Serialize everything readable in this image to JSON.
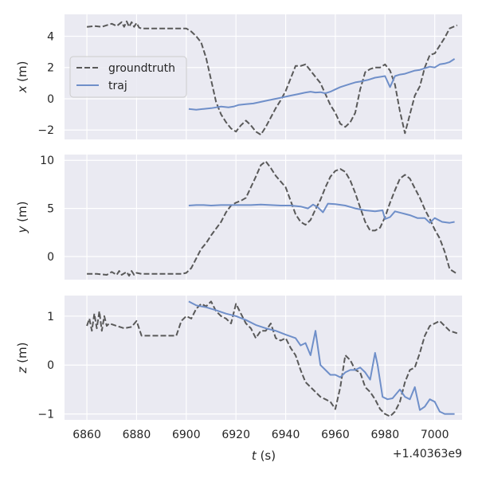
{
  "chart_data": [
    {
      "type": "line",
      "ylabel_var": "x",
      "ylabel_unit": " (m)",
      "ylim": [
        -2.6,
        5.4
      ],
      "yticks": [
        -2,
        0,
        2,
        4
      ],
      "legend": "upper-left",
      "series": [
        {
          "name": "groundtruth",
          "color": "#595959",
          "dashed": true,
          "x": [
            6860,
            6863,
            6866,
            6868,
            6870,
            6872,
            6874,
            6875,
            6876,
            6877,
            6878,
            6879,
            6880,
            6881,
            6882,
            6884,
            6888,
            6892,
            6896,
            6900,
            6902,
            6904,
            6906,
            6908,
            6910,
            6912,
            6914,
            6916,
            6918,
            6920,
            6922,
            6924,
            6926,
            6928,
            6930,
            6932,
            6934,
            6936,
            6938,
            6940,
            6942,
            6944,
            6946,
            6948,
            6950,
            6952,
            6954,
            6956,
            6958,
            6960,
            6962,
            6964,
            6966,
            6968,
            6970,
            6972,
            6974,
            6976,
            6978,
            6980,
            6982,
            6984,
            6986,
            6988,
            6990,
            6992,
            6994,
            6996,
            6998,
            7000,
            7002,
            7004,
            7006,
            7009
          ],
          "y": [
            4.6,
            4.65,
            4.6,
            4.7,
            4.8,
            4.65,
            4.9,
            4.6,
            4.95,
            4.6,
            4.9,
            4.6,
            4.85,
            4.55,
            4.5,
            4.5,
            4.5,
            4.5,
            4.5,
            4.5,
            4.3,
            4.0,
            3.6,
            2.6,
            1.2,
            -0.2,
            -1.0,
            -1.5,
            -1.9,
            -2.1,
            -1.7,
            -1.4,
            -1.7,
            -2.1,
            -2.3,
            -1.8,
            -1.2,
            -0.6,
            -0.1,
            0.5,
            1.3,
            2.1,
            2.1,
            2.2,
            1.8,
            1.4,
            1.0,
            0.3,
            -0.4,
            -0.9,
            -1.6,
            -1.8,
            -1.5,
            -0.9,
            0.6,
            1.7,
            1.9,
            2.0,
            2.0,
            2.2,
            1.8,
            0.9,
            -0.8,
            -2.2,
            -1.0,
            0.2,
            0.8,
            2.0,
            2.8,
            2.9,
            3.4,
            3.9,
            4.5,
            4.7
          ]
        },
        {
          "name": "traj",
          "color": "#6f8fc9",
          "dashed": false,
          "x": [
            6901,
            6904,
            6907,
            6910,
            6912,
            6914,
            6917,
            6919,
            6921,
            6924,
            6927,
            6930,
            6933,
            6936,
            6939,
            6942,
            6945,
            6948,
            6950,
            6952,
            6954,
            6956,
            6958,
            6960,
            6962,
            6964,
            6966,
            6968,
            6970,
            6973,
            6976,
            6978,
            6980,
            6982,
            6984,
            6986,
            6988,
            6990,
            6992,
            6994,
            6996,
            6998,
            7000,
            7002,
            7004,
            7006,
            7008
          ],
          "y": [
            -0.65,
            -0.7,
            -0.65,
            -0.6,
            -0.55,
            -0.5,
            -0.55,
            -0.5,
            -0.4,
            -0.35,
            -0.3,
            -0.2,
            -0.1,
            0.0,
            0.1,
            0.2,
            0.3,
            0.4,
            0.45,
            0.4,
            0.42,
            0.35,
            0.45,
            0.6,
            0.75,
            0.85,
            0.95,
            1.05,
            1.1,
            1.2,
            1.35,
            1.4,
            1.45,
            0.75,
            1.45,
            1.55,
            1.6,
            1.7,
            1.8,
            1.85,
            1.95,
            2.05,
            2.0,
            2.2,
            2.25,
            2.35,
            2.55
          ]
        }
      ]
    },
    {
      "type": "line",
      "ylabel_var": "y",
      "ylabel_unit": " (m)",
      "ylim": [
        -2.4,
        10.6
      ],
      "yticks": [
        0,
        5,
        10
      ],
      "series": [
        {
          "name": "groundtruth",
          "color": "#595959",
          "dashed": true,
          "x": [
            6860,
            6864,
            6868,
            6870,
            6872,
            6873,
            6874,
            6876,
            6877,
            6878,
            6879,
            6880,
            6882,
            6886,
            6890,
            6894,
            6898,
            6900,
            6902,
            6904,
            6906,
            6908,
            6910,
            6912,
            6914,
            6916,
            6918,
            6920,
            6922,
            6924,
            6926,
            6928,
            6930,
            6932,
            6934,
            6936,
            6938,
            6940,
            6942,
            6944,
            6946,
            6948,
            6950,
            6952,
            6954,
            6956,
            6958,
            6960,
            6962,
            6964,
            6966,
            6968,
            6970,
            6972,
            6974,
            6976,
            6978,
            6980,
            6982,
            6984,
            6986,
            6988,
            6990,
            6992,
            6994,
            6996,
            6998,
            7000,
            7002,
            7004,
            7006,
            7009
          ],
          "y": [
            -1.8,
            -1.8,
            -1.9,
            -1.6,
            -1.9,
            -1.5,
            -1.9,
            -1.6,
            -2.0,
            -1.5,
            -1.9,
            -1.7,
            -1.8,
            -1.8,
            -1.8,
            -1.8,
            -1.8,
            -1.7,
            -1.2,
            -0.2,
            0.8,
            1.4,
            2.2,
            2.9,
            3.6,
            4.6,
            5.3,
            5.6,
            5.8,
            6.1,
            7.2,
            8.3,
            9.5,
            9.9,
            9.2,
            8.4,
            7.8,
            7.2,
            5.8,
            4.4,
            3.6,
            3.3,
            3.8,
            4.9,
            5.9,
            7.2,
            8.3,
            8.9,
            9.1,
            8.8,
            7.9,
            6.6,
            5.1,
            3.6,
            2.7,
            2.7,
            3.0,
            4.1,
            5.6,
            6.9,
            8.1,
            8.5,
            8.1,
            7.1,
            6.1,
            4.9,
            3.9,
            2.8,
            1.9,
            0.5,
            -1.3,
            -1.8
          ]
        },
        {
          "name": "traj",
          "color": "#6f8fc9",
          "dashed": false,
          "x": [
            6901,
            6904,
            6907,
            6910,
            6914,
            6918,
            6922,
            6926,
            6930,
            6934,
            6938,
            6942,
            6946,
            6949,
            6951,
            6953,
            6955,
            6957,
            6960,
            6964,
            6968,
            6972,
            6976,
            6979,
            6980,
            6982,
            6984,
            6987,
            6990,
            6993,
            6996,
            6998,
            7000,
            7003,
            7006,
            7008
          ],
          "y": [
            5.3,
            5.35,
            5.35,
            5.3,
            5.35,
            5.35,
            5.35,
            5.35,
            5.4,
            5.35,
            5.3,
            5.3,
            5.2,
            5.0,
            5.4,
            5.1,
            4.6,
            5.5,
            5.45,
            5.3,
            5.0,
            4.8,
            4.7,
            4.8,
            3.9,
            4.1,
            4.7,
            4.5,
            4.3,
            4.0,
            4.0,
            3.5,
            4.0,
            3.6,
            3.5,
            3.6
          ]
        }
      ]
    },
    {
      "type": "line",
      "ylabel_var": "z",
      "ylabel_unit": " (m)",
      "ylim": [
        -1.12,
        1.42
      ],
      "yticks": [
        -1,
        0,
        1
      ],
      "series": [
        {
          "name": "groundtruth",
          "color": "#595959",
          "dashed": true,
          "x": [
            6860,
            6861,
            6862,
            6863,
            6864,
            6865,
            6866,
            6867,
            6868,
            6869,
            6872,
            6875,
            6878,
            6880,
            6882,
            6884,
            6888,
            6892,
            6896,
            6898,
            6900,
            6902,
            6904,
            6906,
            6908,
            6910,
            6912,
            6914,
            6916,
            6918,
            6920,
            6922,
            6924,
            6926,
            6928,
            6930,
            6932,
            6934,
            6936,
            6938,
            6940,
            6942,
            6944,
            6946,
            6948,
            6950,
            6952,
            6954,
            6956,
            6958,
            6960,
            6962,
            6964,
            6966,
            6968,
            6970,
            6972,
            6974,
            6976,
            6978,
            6980,
            6982,
            6984,
            6986,
            6988,
            6990,
            6992,
            6994,
            6996,
            6998,
            7000,
            7002,
            7004,
            7006,
            7009
          ],
          "y": [
            0.8,
            0.95,
            0.7,
            1.05,
            0.75,
            1.1,
            0.7,
            1.0,
            0.8,
            0.85,
            0.8,
            0.75,
            0.78,
            0.9,
            0.6,
            0.6,
            0.6,
            0.6,
            0.6,
            0.9,
            1.0,
            0.95,
            1.15,
            1.25,
            1.2,
            1.3,
            1.1,
            1.0,
            0.95,
            0.85,
            1.25,
            1.05,
            0.85,
            0.75,
            0.55,
            0.7,
            0.7,
            0.85,
            0.55,
            0.5,
            0.55,
            0.35,
            0.2,
            -0.1,
            -0.35,
            -0.45,
            -0.55,
            -0.65,
            -0.7,
            -0.75,
            -0.9,
            -0.45,
            0.2,
            0.1,
            -0.1,
            -0.15,
            -0.45,
            -0.55,
            -0.7,
            -0.9,
            -1.0,
            -1.05,
            -0.95,
            -0.75,
            -0.35,
            -0.1,
            -0.05,
            0.25,
            0.6,
            0.8,
            0.85,
            0.9,
            0.8,
            0.7,
            0.65
          ]
        },
        {
          "name": "traj",
          "color": "#6f8fc9",
          "dashed": false,
          "x": [
            6901,
            6904,
            6908,
            6912,
            6916,
            6920,
            6924,
            6928,
            6932,
            6936,
            6940,
            6944,
            6946,
            6948,
            6950,
            6952,
            6954,
            6956,
            6958,
            6960,
            6962,
            6964,
            6966,
            6968,
            6970,
            6972,
            6974,
            6976,
            6977,
            6979,
            6981,
            6983,
            6986,
            6988,
            6990,
            6992,
            6994,
            6996,
            6998,
            7000,
            7002,
            7004,
            7006,
            7008
          ],
          "y": [
            1.3,
            1.22,
            1.18,
            1.12,
            1.05,
            1.0,
            0.92,
            0.82,
            0.75,
            0.7,
            0.62,
            0.55,
            0.4,
            0.45,
            0.2,
            0.7,
            0.0,
            -0.1,
            -0.2,
            -0.2,
            -0.25,
            -0.15,
            -0.1,
            -0.1,
            -0.05,
            -0.15,
            -0.3,
            0.25,
            0.0,
            -0.65,
            -0.7,
            -0.68,
            -0.5,
            -0.65,
            -0.7,
            -0.45,
            -0.92,
            -0.85,
            -0.7,
            -0.75,
            -0.95,
            -1.0,
            -1.0,
            -1.0
          ]
        }
      ]
    }
  ],
  "x_axis": {
    "xlim": [
      6851,
      7011
    ],
    "ticks": [
      6860,
      6880,
      6900,
      6920,
      6940,
      6960,
      6980,
      7000
    ],
    "tick_labels": [
      "6860",
      "6880",
      "6900",
      "6920",
      "6940",
      "6960",
      "6980",
      "7000"
    ],
    "label_var": "t",
    "label_unit": " (s)",
    "offset_text": "+1.40363e9"
  },
  "style": {
    "plot_bg": "#eaeaf2",
    "grid_color": "#ffffff",
    "legend_bg": "#eaeaf2",
    "legend_edge": "#cccccc"
  }
}
